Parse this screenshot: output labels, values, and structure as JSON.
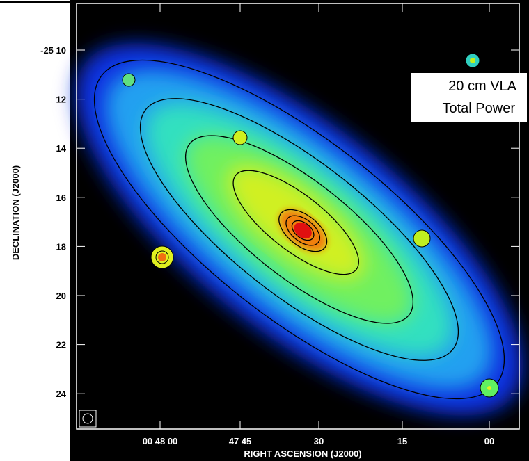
{
  "annotation": {
    "line1": "20 cm VLA",
    "line2": "Total Power"
  },
  "axes": {
    "y_title": "DECLINATION (J2000)",
    "x_title": "RIGHT ASCENSION (J2000)",
    "y_ticks": [
      "-25 10",
      "12",
      "14",
      "16",
      "18",
      "20",
      "22",
      "24"
    ],
    "x_ticks": [
      "00 48 00",
      "47 45",
      "30",
      "15",
      "00"
    ]
  }
}
